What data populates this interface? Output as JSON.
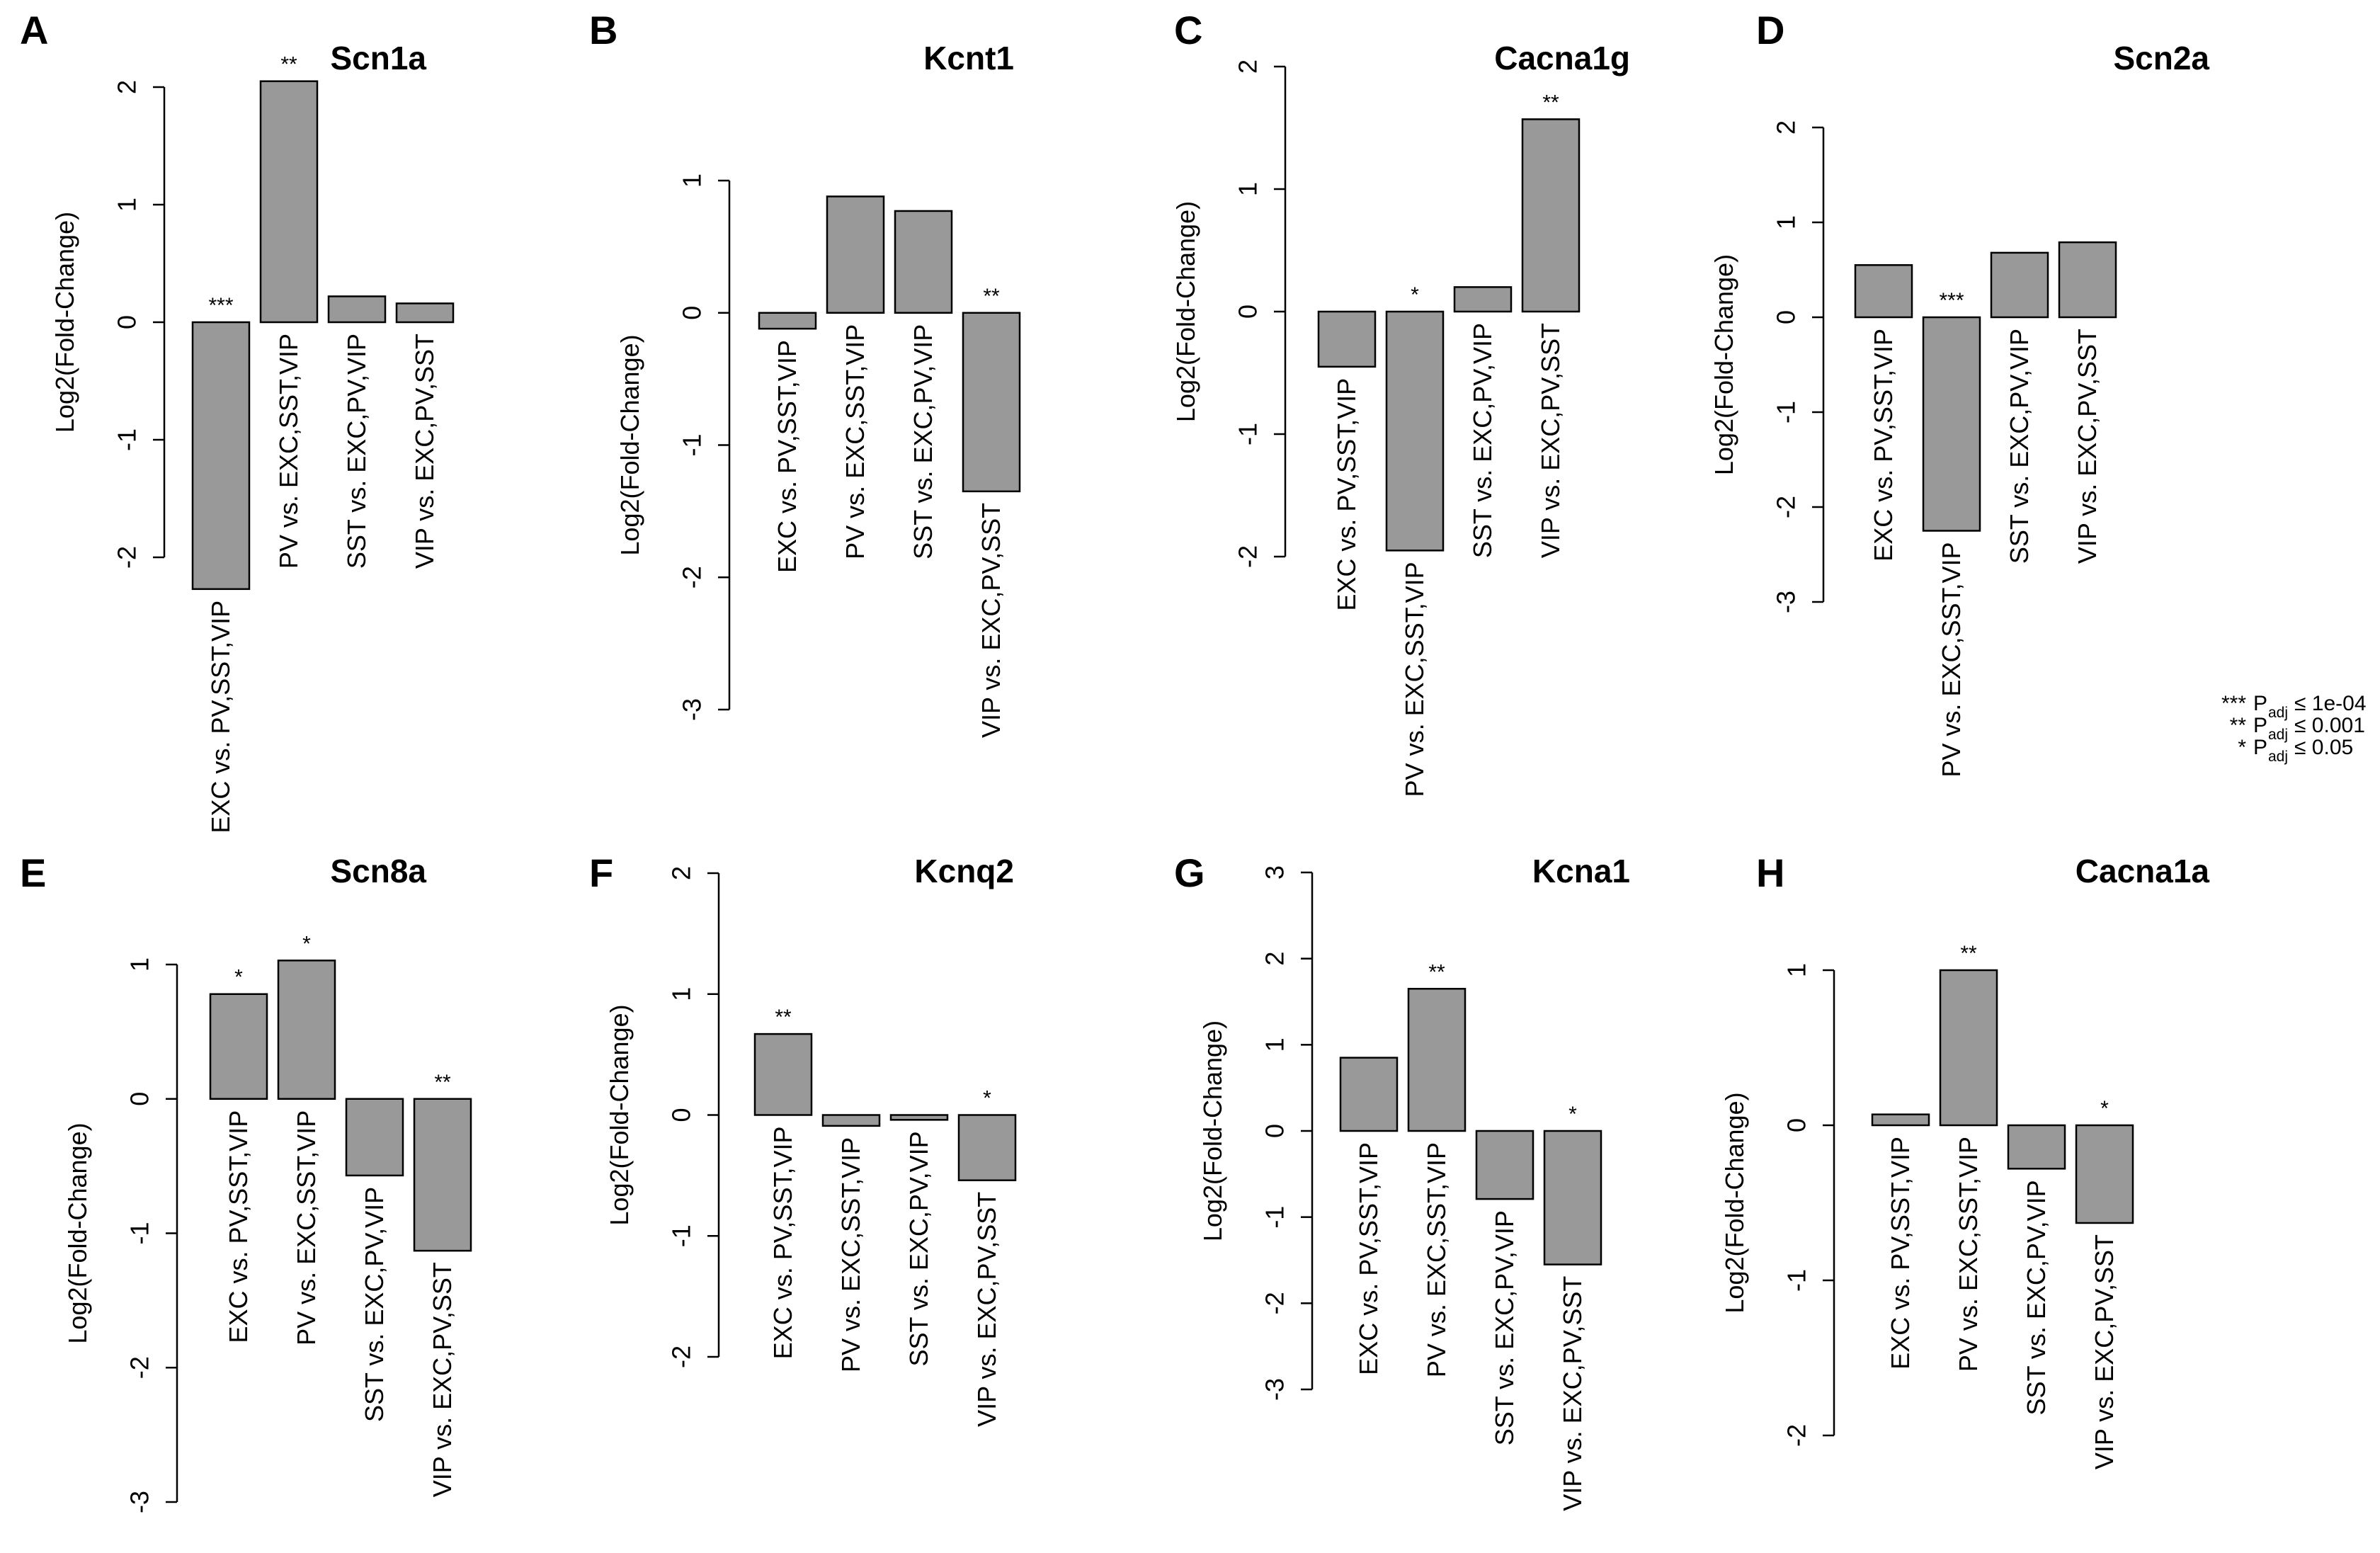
{
  "legend": {
    "entries": [
      {
        "stars": "***",
        "label": "P",
        "subscript": "adj",
        "condition": "≤ 1e-04"
      },
      {
        "stars": "**",
        "label": "P",
        "subscript": "adj",
        "condition": "≤ 0.001"
      },
      {
        "stars": "*",
        "label": "P",
        "subscript": "adj",
        "condition": "≤ 0.05"
      }
    ]
  },
  "chart_data": [
    {
      "panel": "A",
      "title": "Scn1a",
      "type": "bar",
      "ylabel": "Log2(Fold-Change)",
      "ylim": [
        -2,
        2
      ],
      "yticks": [
        -2,
        -1,
        0,
        1,
        2
      ],
      "categories": [
        "EXC vs. PV,SST,VIP",
        "PV vs. EXC,SST,VIP",
        "SST vs. EXC,PV,VIP",
        "VIP vs. EXC,PV,SST"
      ],
      "values": [
        -2.27,
        2.05,
        0.22,
        0.16
      ],
      "significance": [
        "***",
        "**",
        "",
        ""
      ]
    },
    {
      "panel": "B",
      "title": "Kcnt1",
      "type": "bar",
      "ylabel": "Log2(Fold-Change)",
      "ylim": [
        -3,
        1
      ],
      "yticks": [
        -3,
        -2,
        -1,
        0,
        1
      ],
      "categories": [
        "EXC vs. PV,SST,VIP",
        "PV vs. EXC,SST,VIP",
        "SST vs. EXC,PV,VIP",
        "VIP vs. EXC,PV,SST"
      ],
      "values": [
        -0.12,
        0.88,
        0.77,
        -1.35
      ],
      "significance": [
        "",
        "",
        "",
        "**"
      ]
    },
    {
      "panel": "C",
      "title": "Cacna1g",
      "type": "bar",
      "ylabel": "Log2(Fold-Change)",
      "ylim": [
        -2,
        2
      ],
      "yticks": [
        -2,
        -1,
        0,
        1,
        2
      ],
      "categories": [
        "EXC vs. PV,SST,VIP",
        "PV vs. EXC,SST,VIP",
        "SST vs. EXC,PV,VIP",
        "VIP vs. EXC,PV,SST"
      ],
      "values": [
        -0.45,
        -1.95,
        0.2,
        1.57
      ],
      "significance": [
        "",
        "*",
        "",
        "**"
      ]
    },
    {
      "panel": "D",
      "title": "Scn2a",
      "type": "bar",
      "ylabel": "Log2(Fold-Change)",
      "ylim": [
        -3,
        2
      ],
      "yticks": [
        -3,
        -2,
        -1,
        0,
        1,
        2
      ],
      "categories": [
        "EXC vs. PV,SST,VIP",
        "PV vs. EXC,SST,VIP",
        "SST vs. EXC,PV,VIP",
        "VIP vs. EXC,PV,SST"
      ],
      "values": [
        0.55,
        -2.25,
        0.68,
        0.79
      ],
      "significance": [
        "",
        "***",
        "",
        ""
      ]
    },
    {
      "panel": "E",
      "title": "Scn8a",
      "type": "bar",
      "ylabel": "Log2(Fold-Change)",
      "ylim": [
        -3,
        1
      ],
      "yticks": [
        -3,
        -2,
        -1,
        0,
        1
      ],
      "categories": [
        "EXC vs. PV,SST,VIP",
        "PV vs. EXC,SST,VIP",
        "SST vs. EXC,PV,VIP",
        "VIP vs. EXC,PV,SST"
      ],
      "values": [
        0.78,
        1.03,
        -0.57,
        -1.13
      ],
      "significance": [
        "*",
        "*",
        "",
        "**"
      ]
    },
    {
      "panel": "F",
      "title": "Kcnq2",
      "type": "bar",
      "ylabel": "Log2(Fold-Change)",
      "ylim": [
        -2,
        2
      ],
      "yticks": [
        -2,
        -1,
        0,
        1,
        2
      ],
      "categories": [
        "EXC vs. PV,SST,VIP",
        "PV vs. EXC,SST,VIP",
        "SST vs. EXC,PV,VIP",
        "VIP vs. EXC,PV,SST"
      ],
      "values": [
        0.67,
        -0.09,
        -0.04,
        -0.54
      ],
      "significance": [
        "**",
        "",
        "",
        "*"
      ]
    },
    {
      "panel": "G",
      "title": "Kcna1",
      "type": "bar",
      "ylabel": "Log2(Fold-Change)",
      "ylim": [
        -3,
        3
      ],
      "yticks": [
        -3,
        -2,
        -1,
        0,
        1,
        2,
        3
      ],
      "categories": [
        "EXC vs. PV,SST,VIP",
        "PV vs. EXC,SST,VIP",
        "SST vs. EXC,PV,VIP",
        "VIP vs. EXC,PV,SST"
      ],
      "values": [
        0.85,
        1.65,
        -0.79,
        -1.55
      ],
      "significance": [
        "",
        "**",
        "",
        "*"
      ]
    },
    {
      "panel": "H",
      "title": "Cacna1a",
      "type": "bar",
      "ylabel": "Log2(Fold-Change)",
      "ylim": [
        -2,
        1
      ],
      "yticks": [
        -2,
        -1,
        0,
        1
      ],
      "categories": [
        "EXC vs. PV,SST,VIP",
        "PV vs. EXC,SST,VIP",
        "SST vs. EXC,PV,VIP",
        "VIP vs. EXC,PV,SST"
      ],
      "values": [
        0.07,
        1.0,
        -0.28,
        -0.63
      ],
      "significance": [
        "",
        "**",
        "",
        "*"
      ]
    }
  ]
}
